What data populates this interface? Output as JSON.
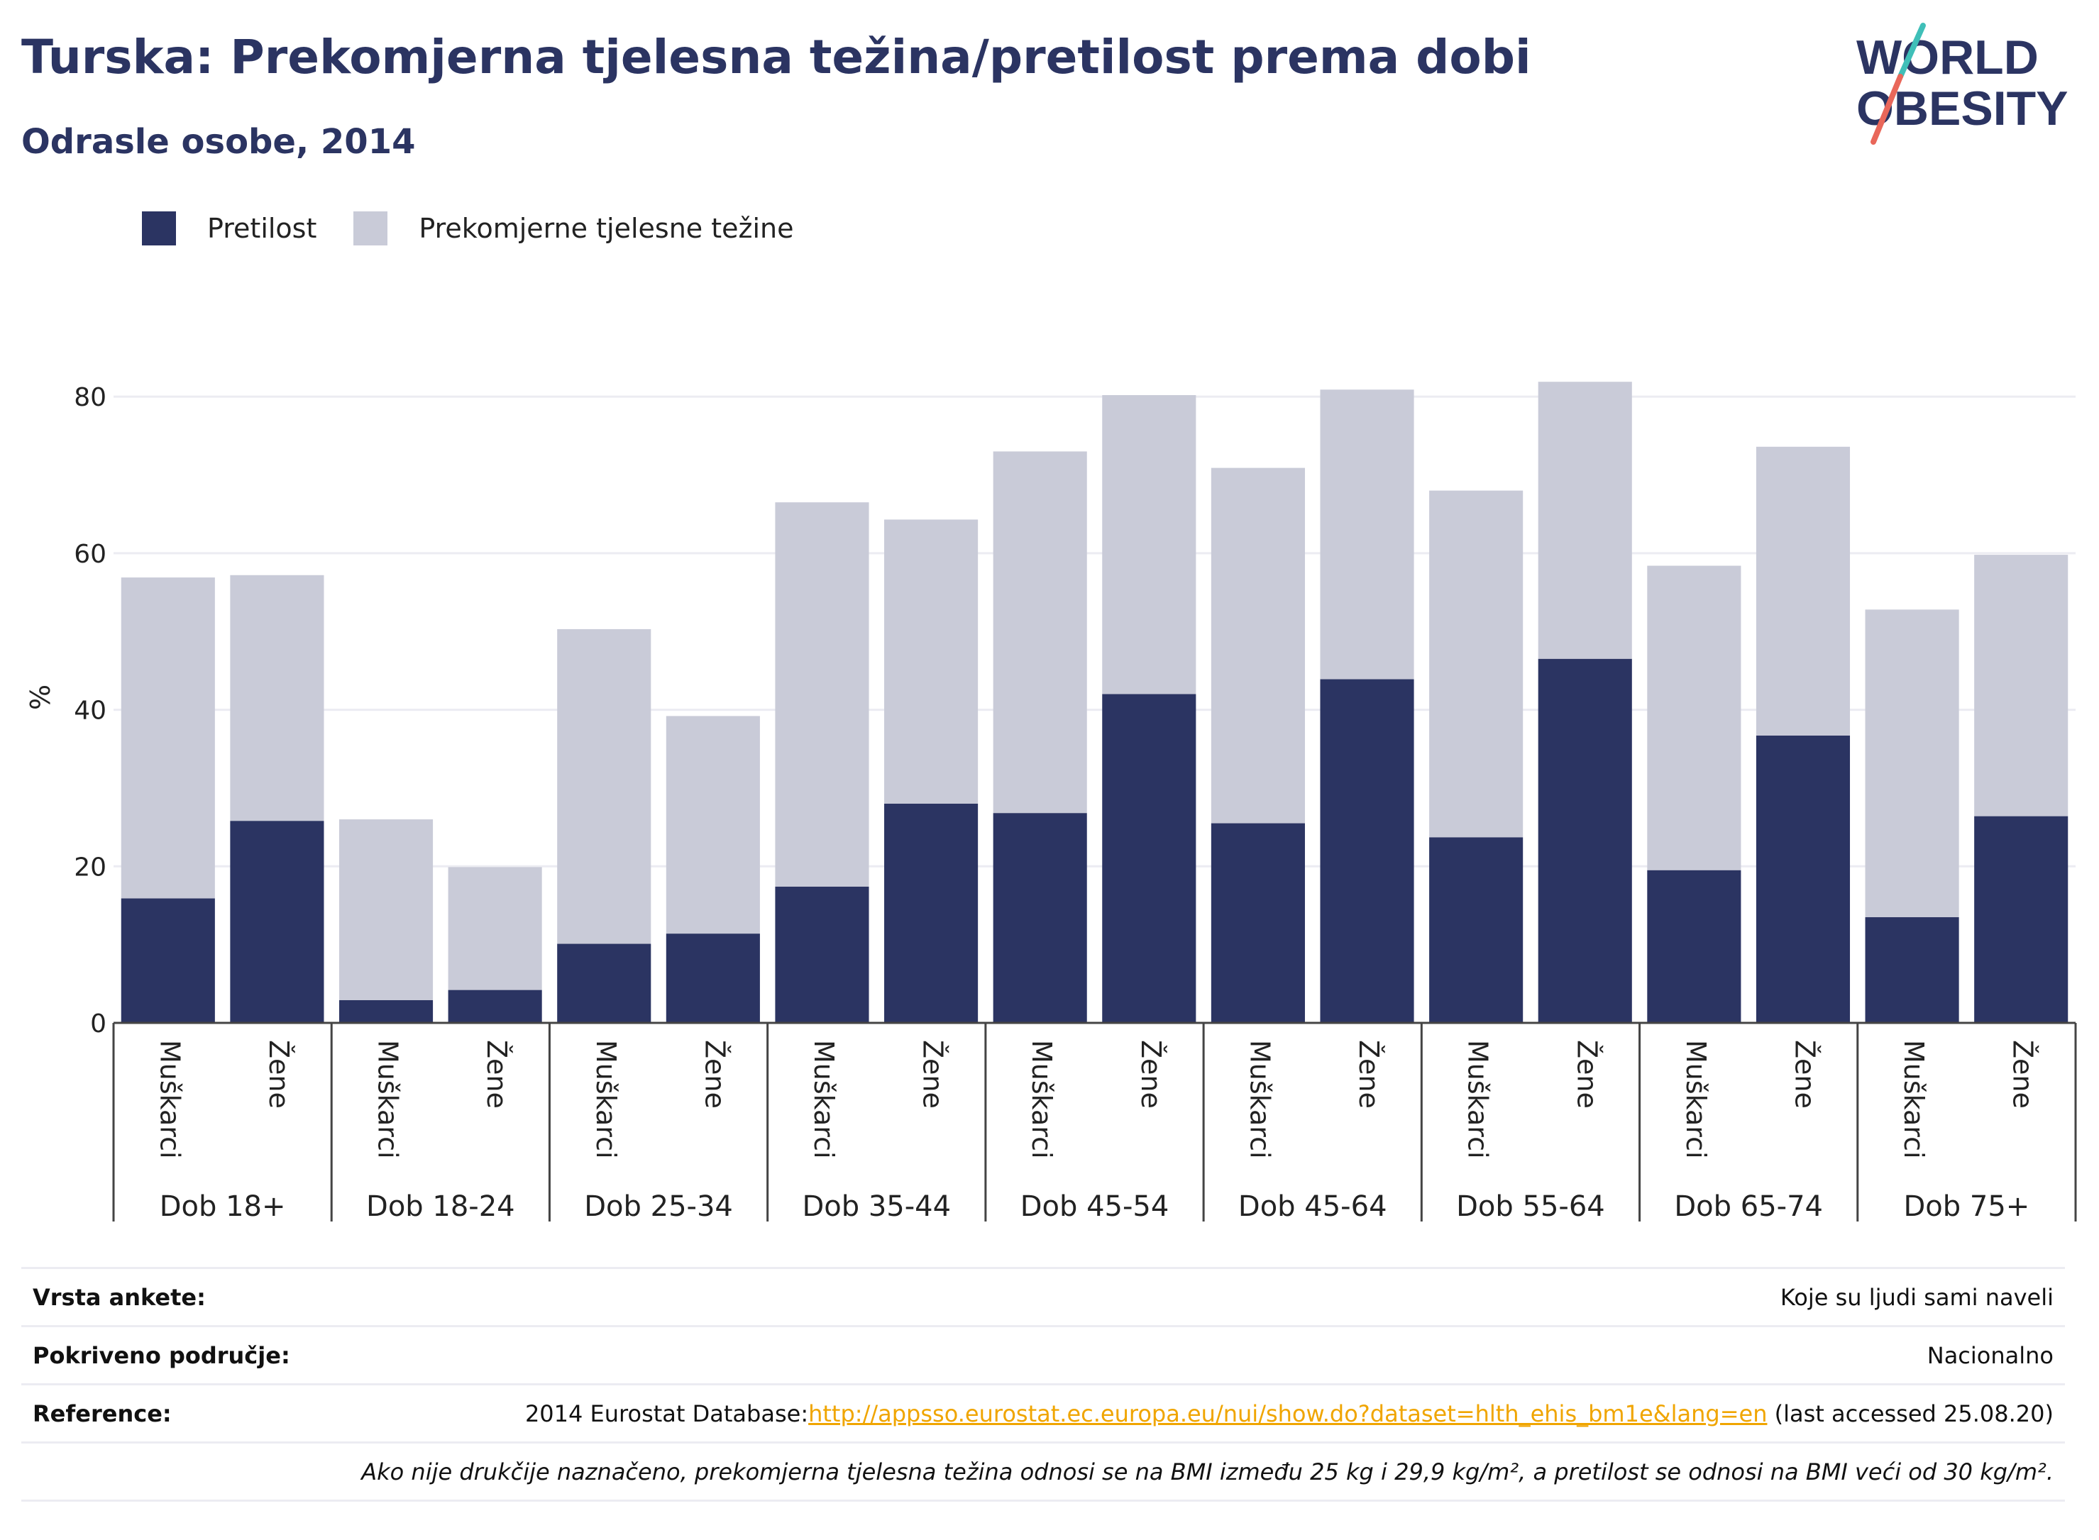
{
  "header": {
    "title": "Turska: Prekomjerna tjelesna težina/pretilost prema dobi",
    "subtitle": "Odrasle osobe, 2014"
  },
  "logo": {
    "line1": "WORLD",
    "line2": "OBESITY",
    "icon": "world-obesity-logo"
  },
  "legend": [
    {
      "label": "Pretilost",
      "color": "#2b3462"
    },
    {
      "label": "Prekomjerne tjelesne težine",
      "color": "#c9cbd8"
    }
  ],
  "chart_data": {
    "type": "bar",
    "stacked": true,
    "ylabel": "%",
    "ylim": [
      0,
      85
    ],
    "yticks": [
      0,
      20,
      40,
      60,
      80
    ],
    "grid": true,
    "legend_position": "top-left",
    "groups": [
      "Dob 18+",
      "Dob 18-24",
      "Dob 25-34",
      "Dob 35-44",
      "Dob 45-54",
      "Dob 45-64",
      "Dob 55-64",
      "Dob 65-74",
      "Dob 75+"
    ],
    "subcategories": [
      "Muškarci",
      "Žene"
    ],
    "series": [
      {
        "name": "Pretilost",
        "color": "#2b3462",
        "values": [
          15.9,
          25.8,
          2.9,
          4.2,
          10.1,
          11.4,
          17.4,
          28.0,
          26.8,
          42.0,
          25.5,
          43.9,
          23.7,
          46.5,
          19.5,
          36.7,
          13.5,
          26.4
        ]
      },
      {
        "name": "Prekomjerne tjelesne težine",
        "color": "#c9cbd8",
        "values": [
          41.0,
          31.4,
          23.1,
          15.7,
          40.2,
          27.8,
          49.1,
          36.3,
          46.2,
          38.2,
          45.4,
          37.0,
          44.3,
          35.4,
          38.9,
          36.9,
          39.3,
          33.4
        ]
      }
    ]
  },
  "info": {
    "survey_type_label": "Vrsta ankete:",
    "survey_type_value": "Koje su ljudi sami naveli",
    "coverage_label": "Pokriveno područje:",
    "coverage_value": "Nacionalno",
    "reference_label": "Reference:",
    "reference_prefix": "2014 Eurostat Database:",
    "reference_link": "http://appsso.eurostat.ec.europa.eu/nui/show.do?dataset=hlth_ehis_bm1e&lang=en",
    "reference_suffix": " (last accessed 25.08.20)",
    "note": "Ako nije drukčije naznačeno, prekomjerna tjelesna težina odnosi se na BMI između 25 kg i 29,9 kg/m², a pretilost se odnosi na BMI veći od 30 kg/m²."
  }
}
